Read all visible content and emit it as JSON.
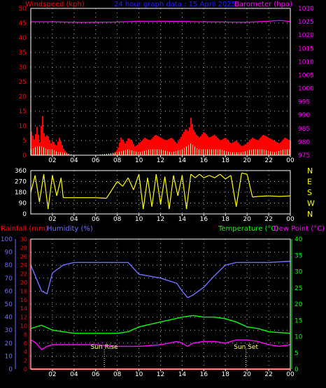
{
  "header": {
    "windspeed_label": "Windspeed (kph)",
    "title": "24 hour graph data : 15 April 2025",
    "barometer_label": "Barometer (hpa)"
  },
  "direction_labels": [
    "N",
    "W",
    "S",
    "E",
    "N"
  ],
  "bottom_labels": {
    "rainfall": "Rainfall (mm)",
    "humidity": "Humidity (%)",
    "temperature": "Temperature (°C)",
    "dewpoint": "Dew Point (°C)"
  },
  "markers": {
    "sunrise": "Sun Rise",
    "sunset": "Sun Set"
  },
  "colors": {
    "windspeed": "#ff0000",
    "gust": "#ff0000",
    "wind_avg": "#c0ffc0",
    "barometer": "#ff00ff",
    "direction": "#ffff00",
    "title": "#2020ff",
    "humidity": "#7070ff",
    "temperature": "#00ff00",
    "dewpoint": "#ff00ff",
    "rainfall": "#ff0000",
    "grid": "#ffffff",
    "axis": "#ffffff"
  },
  "chart_data": [
    {
      "type": "line",
      "title": "24 hour graph data : 15 April 2025",
      "x_ticks": [
        "02",
        "04",
        "06",
        "08",
        "10",
        "12",
        "14",
        "16",
        "18",
        "20",
        "22",
        "00"
      ],
      "xlim": [
        0,
        24
      ],
      "y_left": {
        "label": "Windspeed (kph)",
        "ticks": [
          0,
          5,
          10,
          15,
          20,
          25,
          30,
          35,
          40,
          45,
          50
        ],
        "ylim": [
          0,
          50
        ]
      },
      "y_right": {
        "label": "Barometer (hpa)",
        "ticks": [
          975,
          980,
          985,
          990,
          995,
          1000,
          1005,
          1010,
          1015,
          1020,
          1025,
          1030
        ],
        "ylim": [
          975,
          1030
        ]
      },
      "series": [
        {
          "name": "Barometer (hpa)",
          "axis": "right",
          "x": [
            0,
            2,
            4,
            6,
            8,
            10,
            12,
            14,
            16,
            18,
            20,
            22,
            23,
            24
          ],
          "y": [
            1025.0,
            1025.0,
            1024.8,
            1024.8,
            1024.9,
            1025.2,
            1025.2,
            1025.1,
            1025.0,
            1024.9,
            1024.8,
            1025.2,
            1025.5,
            1025.1
          ]
        },
        {
          "name": "Windspeed (kph)",
          "axis": "left",
          "x": [
            0,
            0.3,
            0.5,
            0.8,
            1.0,
            1.2,
            1.5,
            1.8,
            2.0,
            2.3,
            2.6,
            3.0,
            3.5,
            4.0,
            5.0,
            6.0,
            7.0,
            7.5,
            8.0,
            8.3,
            8.7,
            9.0,
            9.3,
            9.6,
            10.0,
            10.5,
            11.0,
            11.5,
            12.0,
            12.5,
            13.0,
            13.5,
            14.0,
            14.3,
            14.6,
            14.8,
            15.0,
            15.3,
            15.6,
            16.0,
            16.5,
            17.0,
            17.5,
            18.0,
            18.5,
            19.0,
            19.5,
            20.0,
            20.5,
            21.0,
            21.5,
            22.0,
            22.5,
            23.0,
            23.5,
            24.0
          ],
          "y": [
            8,
            5,
            10,
            4,
            15,
            6,
            7,
            4,
            5,
            3,
            6,
            2,
            0,
            0,
            0,
            0,
            0,
            0,
            2,
            6,
            4,
            6,
            5,
            3,
            4,
            6,
            5,
            7,
            6,
            5,
            6,
            4,
            7,
            9,
            8,
            13,
            9,
            7,
            6,
            8,
            6,
            7,
            5,
            6,
            4,
            5,
            3,
            4,
            6,
            5,
            7,
            6,
            5,
            4,
            6,
            5
          ]
        },
        {
          "name": "Average wind",
          "axis": "left",
          "x": [
            0,
            0.5,
            1.0,
            1.5,
            2.0,
            2.5,
            3.0,
            4.0,
            6.0,
            8.0,
            9.0,
            10.0,
            11.0,
            12.0,
            13.0,
            14.0,
            14.8,
            15.5,
            16.5,
            17.5,
            18.5,
            19.5,
            20.5,
            21.5,
            22.5,
            23.5,
            24.0
          ],
          "y": [
            2,
            3,
            3,
            2,
            2,
            1,
            1,
            0,
            0,
            1,
            2,
            1,
            2,
            2,
            1,
            2,
            4,
            2,
            2,
            2,
            1,
            1,
            2,
            2,
            1,
            2,
            2
          ]
        }
      ]
    },
    {
      "type": "scatter",
      "title": "",
      "x_ticks": [
        "02",
        "04",
        "06",
        "08",
        "10",
        "12",
        "14",
        "16",
        "18",
        "20",
        "22",
        "00"
      ],
      "xlim": [
        0,
        24
      ],
      "y_left": {
        "ticks": [
          0,
          90,
          180,
          270,
          360
        ],
        "ylim": [
          0,
          360
        ]
      },
      "y_right": {
        "ticks": [
          "N",
          "W",
          "S",
          "E",
          "N"
        ]
      },
      "series": [
        {
          "name": "Wind direction",
          "axis": "left",
          "x": [
            0.0,
            0.4,
            0.8,
            1.2,
            1.6,
            2.0,
            2.4,
            2.8,
            3.0,
            4.0,
            5.0,
            6.0,
            7.0,
            7.5,
            8.0,
            8.5,
            9.0,
            9.5,
            10.0,
            10.4,
            10.8,
            11.2,
            11.6,
            12.0,
            12.4,
            12.8,
            13.2,
            13.6,
            14.0,
            14.4,
            14.8,
            15.2,
            15.6,
            16.0,
            16.5,
            17.0,
            17.5,
            18.0,
            18.5,
            19.0,
            19.5,
            20.0,
            20.5,
            21.0,
            22.0,
            23.0,
            24.0
          ],
          "y": [
            180,
            320,
            100,
            330,
            40,
            320,
            150,
            300,
            135,
            135,
            135,
            135,
            130,
            200,
            270,
            230,
            300,
            200,
            330,
            40,
            300,
            60,
            330,
            80,
            310,
            40,
            320,
            150,
            320,
            40,
            330,
            300,
            330,
            300,
            320,
            300,
            330,
            290,
            320,
            60,
            340,
            330,
            140,
            145,
            150,
            145,
            150
          ]
        }
      ]
    },
    {
      "type": "line",
      "title": "",
      "x_ticks": [
        "02",
        "04",
        "06",
        "08",
        "10",
        "12",
        "14",
        "16",
        "18",
        "20",
        "22",
        "00"
      ],
      "xlim": [
        0,
        24
      ],
      "y_left_rainfall": {
        "label": "Rainfall (mm)",
        "ticks": [
          0,
          2,
          4,
          6,
          8,
          10,
          12,
          14,
          16,
          18,
          20,
          22,
          24,
          26,
          28,
          30
        ],
        "ylim": [
          0,
          30
        ]
      },
      "y_left_humidity": {
        "label": "Humidity (%)",
        "ticks": [
          0,
          10,
          20,
          30,
          40,
          50,
          60,
          70,
          80,
          90,
          100
        ],
        "ylim": [
          0,
          100
        ]
      },
      "y_right": {
        "label": "Temperature (°C)",
        "ticks": [
          0,
          5,
          10,
          15,
          20,
          25,
          30,
          35,
          40
        ],
        "ylim": [
          0,
          40
        ]
      },
      "series": [
        {
          "name": "Humidity (%)",
          "axis": "humidity",
          "x": [
            0,
            0.5,
            1.0,
            1.5,
            2.0,
            3.0,
            4.0,
            6.0,
            8.0,
            9.0,
            10.0,
            12.0,
            13.5,
            14.0,
            14.5,
            15.0,
            16.0,
            17.0,
            18.0,
            19.0,
            20.0,
            22.0,
            24.0
          ],
          "y": [
            80,
            70,
            60,
            58,
            74,
            80,
            82,
            82,
            82,
            82,
            73,
            70,
            66,
            60,
            55,
            57,
            63,
            72,
            80,
            82,
            82,
            82,
            83
          ]
        },
        {
          "name": "Temperature (°C)",
          "axis": "right",
          "x": [
            0,
            1.0,
            2.0,
            3.0,
            4.0,
            6.0,
            8.0,
            9.0,
            10.0,
            12.0,
            14.0,
            15.0,
            16.0,
            17.0,
            18.0,
            19.0,
            20.0,
            21.0,
            22.0,
            24.0
          ],
          "y": [
            12.5,
            13.5,
            12.0,
            11.5,
            11.0,
            11.0,
            11.0,
            11.5,
            13.0,
            14.5,
            16.0,
            16.5,
            16.0,
            16.0,
            15.5,
            14.5,
            13.0,
            12.5,
            11.5,
            11.0
          ]
        },
        {
          "name": "Dew Point (°C)",
          "axis": "right",
          "x": [
            0,
            0.5,
            1.0,
            1.5,
            2.0,
            3.0,
            4.0,
            6.0,
            8.0,
            10.0,
            12.0,
            13.5,
            14.0,
            14.5,
            15.0,
            16.0,
            17.0,
            18.0,
            19.0,
            20.0,
            21.0,
            22.0,
            23.0,
            24.0
          ],
          "y": [
            9.0,
            8.0,
            6.0,
            7.0,
            7.5,
            7.5,
            7.5,
            7.5,
            7.0,
            7.0,
            7.5,
            8.5,
            8.0,
            7.0,
            8.0,
            8.5,
            8.5,
            8.0,
            9.0,
            9.0,
            8.5,
            7.5,
            7.0,
            7.5
          ]
        },
        {
          "name": "Rainfall (mm)",
          "axis": "rainfall",
          "x": [
            0,
            24
          ],
          "y": [
            0,
            0
          ]
        }
      ],
      "annotations": [
        {
          "text": "Sun Rise",
          "x": 6.8
        },
        {
          "text": "Sun Set",
          "x": 19.9
        }
      ]
    }
  ]
}
